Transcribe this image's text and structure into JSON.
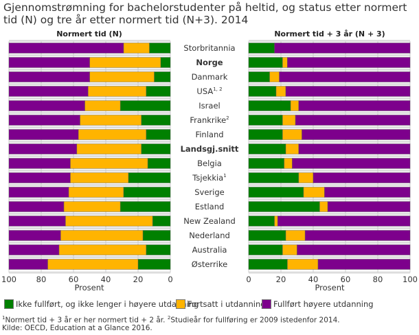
{
  "chart_data": [
    {
      "type": "bar",
      "orientation": "horizontal-stacked",
      "title": "Gjennomstrømning for bachelorstudenter på heltid, og status etter normert tid (N) og tre år etter normert tid (N+3). 2014",
      "panel_title": "Normert tid (N)",
      "xlabel": "Prosent",
      "xlim": [
        100,
        0
      ],
      "xticks": [
        "100",
        "80",
        "60",
        "40",
        "20",
        "0"
      ],
      "grid": true,
      "categories": [
        "Storbritannia",
        "Norge",
        "Danmark",
        "USA",
        "Israel",
        "Frankrike",
        "Finland",
        "Landsgj.snitt",
        "Belgia",
        "Tsjekkia",
        "Sverige",
        "Estland",
        "New Zealand",
        "Nederland",
        "Australia",
        "Østerrike"
      ],
      "series": [
        {
          "name": "Ikke fullført, og ikke lenger i høyere utdanning",
          "color": "#008000",
          "values": [
            13,
            6,
            10,
            15,
            31,
            18,
            15,
            18,
            14,
            26,
            29,
            31,
            11,
            17,
            15,
            20
          ]
        },
        {
          "name": "Fortsatt i utdanning",
          "color": "#ffb400",
          "values": [
            16,
            44,
            40,
            36,
            22,
            38,
            42,
            40,
            48,
            36,
            34,
            35,
            54,
            51,
            54,
            56
          ]
        },
        {
          "name": "Fullført høyere utdanning",
          "color": "#7d008c",
          "values": [
            71,
            50,
            50,
            49,
            47,
            44,
            43,
            42,
            38,
            38,
            37,
            34,
            35,
            32,
            31,
            24
          ]
        }
      ]
    },
    {
      "type": "bar",
      "orientation": "horizontal-stacked",
      "panel_title": "Normert tid + 3 år (N + 3)",
      "xlabel": "Prosent",
      "xlim": [
        0,
        100
      ],
      "xticks": [
        "0",
        "20",
        "40",
        "60",
        "80",
        "100"
      ],
      "grid": true,
      "categories": [
        "Storbritannia",
        "Norge",
        "Danmark",
        "USA",
        "Israel",
        "Frankrike",
        "Finland",
        "Landsgj.snitt",
        "Belgia",
        "Tsjekkia",
        "Sverige",
        "Estland",
        "New Zealand",
        "Nederland",
        "Australia",
        "Østerrike"
      ],
      "series": [
        {
          "name": "Ikke fullført, og ikke lenger i høyere utdanning",
          "color": "#008000",
          "values": [
            16,
            21,
            13,
            17,
            26,
            21,
            21,
            23,
            22,
            31,
            34,
            44,
            16,
            23,
            21,
            24
          ]
        },
        {
          "name": "Fortsatt i utdanning",
          "color": "#ffb400",
          "values": [
            0,
            3,
            6,
            6,
            5,
            8,
            12,
            8,
            5,
            9,
            13,
            5,
            2,
            12,
            9,
            19
          ]
        },
        {
          "name": "Fullført høyere utdanning",
          "color": "#7d008c",
          "values": [
            84,
            76,
            81,
            77,
            69,
            71,
            67,
            69,
            73,
            60,
            53,
            51,
            82,
            65,
            70,
            57
          ]
        }
      ]
    }
  ],
  "category_labels": [
    {
      "text": "Storbritannia",
      "sup": "",
      "bold": false
    },
    {
      "text": "Norge",
      "sup": "",
      "bold": true
    },
    {
      "text": "Danmark",
      "sup": "",
      "bold": false
    },
    {
      "text": "USA",
      "sup": "1, 2",
      "bold": false
    },
    {
      "text": "Israel",
      "sup": "",
      "bold": false
    },
    {
      "text": "Frankrike",
      "sup": "2",
      "bold": false
    },
    {
      "text": "Finland",
      "sup": "",
      "bold": false
    },
    {
      "text": "Landsgj.snitt",
      "sup": "",
      "bold": true
    },
    {
      "text": "Belgia",
      "sup": "",
      "bold": false
    },
    {
      "text": "Tsjekkia",
      "sup": "1",
      "bold": false
    },
    {
      "text": "Sverige",
      "sup": "",
      "bold": false
    },
    {
      "text": "Estland",
      "sup": "",
      "bold": false
    },
    {
      "text": "New Zealand",
      "sup": "",
      "bold": false
    },
    {
      "text": "Nederland",
      "sup": "",
      "bold": false
    },
    {
      "text": "Australia",
      "sup": "",
      "bold": false
    },
    {
      "text": "Østerrike",
      "sup": "",
      "bold": false
    }
  ],
  "legend": [
    "Ikke fullført, og ikke lenger i høyere utdanning",
    "Fortsatt i utdanning",
    "Fullført høyere utdanning"
  ],
  "footnotes": {
    "note1_sup": "1",
    "note1": "Normert tid + 3 år er her normert tid + 2 år.",
    "note2_sup": "2",
    "note2": "Studieår for fullføring er 2009 istedenfor 2014.",
    "source": "Kilde: OECD, Education at a Glance 2016."
  }
}
